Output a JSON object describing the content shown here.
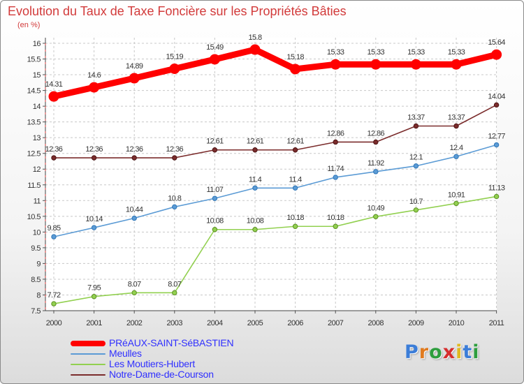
{
  "chart_data": {
    "type": "line",
    "title": "Evolution du Taux de Taxe Foncière sur les Propriétés Bâties",
    "unit_label": "(en %)",
    "x": [
      "2000",
      "2001",
      "2002",
      "2003",
      "2004",
      "2005",
      "2006",
      "2007",
      "2008",
      "2009",
      "2010",
      "2011"
    ],
    "ylim": [
      7.5,
      16
    ],
    "yticks": [
      "7.5",
      "8",
      "8.5",
      "9",
      "9.5",
      "10",
      "10.5",
      "11",
      "11.5",
      "12",
      "12.5",
      "13",
      "13.5",
      "14",
      "14.5",
      "15",
      "15.5",
      "16"
    ],
    "grid": true,
    "series": [
      {
        "name": "PRéAUX-SAINT-SéBASTIEN",
        "color": "#ff0000",
        "values": [
          14.31,
          14.6,
          14.89,
          15.19,
          15.49,
          15.8,
          15.18,
          15.33,
          15.33,
          15.33,
          15.33,
          15.64
        ],
        "labels": [
          "14.31",
          "14.6",
          "14.89",
          "15.19",
          "15.49",
          "15.8",
          "15.18",
          "15.33",
          "15.33",
          "15.33",
          "15.33",
          "15.64"
        ]
      },
      {
        "name": "Meulles",
        "color": "#5b9bd5",
        "values": [
          9.85,
          10.14,
          10.44,
          10.8,
          11.07,
          11.4,
          11.4,
          11.74,
          11.92,
          12.1,
          12.4,
          12.77
        ],
        "labels": [
          "9.85",
          "10.14",
          "10.44",
          "10.8",
          "11.07",
          "11.4",
          "11.4",
          "11.74",
          "11.92",
          "12.1",
          "12.4",
          "12.77"
        ]
      },
      {
        "name": "Les Moutiers-Hubert",
        "color": "#92d050",
        "values": [
          7.72,
          7.95,
          8.07,
          8.07,
          10.08,
          10.08,
          10.18,
          10.18,
          10.49,
          10.7,
          10.91,
          11.13
        ],
        "labels": [
          "7.72",
          "7.95",
          "8.07",
          "8.07",
          "10.08",
          "10.08",
          "10.18",
          "10.18",
          "10.49",
          "10.7",
          "10.91",
          "11.13"
        ]
      },
      {
        "name": "Notre-Dame-de-Courson",
        "color": "#7b2c2c",
        "values": [
          12.36,
          12.36,
          12.36,
          12.36,
          12.61,
          12.61,
          12.61,
          12.86,
          12.86,
          13.37,
          13.37,
          14.04
        ],
        "labels": [
          "12.36",
          "12.36",
          "12.36",
          "12.36",
          "12.61",
          "12.61",
          "12.61",
          "12.86",
          "12.86",
          "13.37",
          "13.37",
          "14.04"
        ]
      }
    ]
  },
  "logo": {
    "text": "Proxiti"
  }
}
